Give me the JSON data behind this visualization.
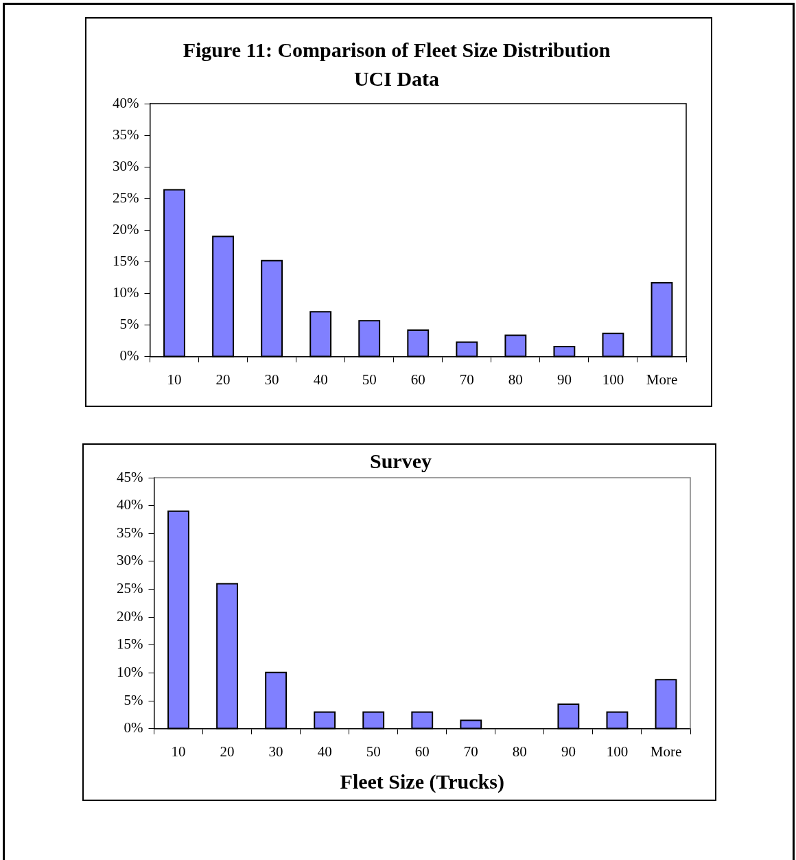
{
  "chart_data": [
    {
      "type": "bar",
      "title": "Figure 11: Comparison of Fleet Size Distribution",
      "subtitle": "UCI Data",
      "categories": [
        "10",
        "20",
        "30",
        "40",
        "50",
        "60",
        "70",
        "80",
        "90",
        "100",
        "More"
      ],
      "values": [
        26.4,
        19.0,
        15.2,
        7.1,
        5.7,
        4.2,
        2.3,
        3.4,
        1.6,
        3.7,
        11.7
      ],
      "color": "#8080ff",
      "ylim": [
        0,
        40
      ],
      "yticks": [
        {
          "value": 0,
          "label": "0%"
        },
        {
          "value": 5,
          "label": "5%"
        },
        {
          "value": 10,
          "label": "10%"
        },
        {
          "value": 15,
          "label": "15%"
        },
        {
          "value": 20,
          "label": "20%"
        },
        {
          "value": 25,
          "label": "25%"
        },
        {
          "value": 30,
          "label": "30%"
        },
        {
          "value": 35,
          "label": "35%"
        },
        {
          "value": 40,
          "label": "40%"
        }
      ],
      "grid": false,
      "legend": false
    },
    {
      "type": "bar",
      "title": "Survey",
      "xlabel": "Fleet Size (Trucks)",
      "categories": [
        "10",
        "20",
        "30",
        "40",
        "50",
        "60",
        "70",
        "80",
        "90",
        "100",
        "More"
      ],
      "values": [
        39.0,
        26.0,
        10.1,
        3.0,
        3.0,
        3.0,
        1.5,
        0,
        4.4,
        3.0,
        8.8
      ],
      "color": "#8080ff",
      "ylim": [
        0,
        45
      ],
      "yticks": [
        {
          "value": 0,
          "label": "0%"
        },
        {
          "value": 5,
          "label": "5%"
        },
        {
          "value": 10,
          "label": "10%"
        },
        {
          "value": 15,
          "label": "15%"
        },
        {
          "value": 20,
          "label": "20%"
        },
        {
          "value": 25,
          "label": "25%"
        },
        {
          "value": 30,
          "label": "30%"
        },
        {
          "value": 35,
          "label": "35%"
        },
        {
          "value": 40,
          "label": "40%"
        },
        {
          "value": 45,
          "label": "45%"
        }
      ],
      "grid": false,
      "legend": false
    }
  ]
}
